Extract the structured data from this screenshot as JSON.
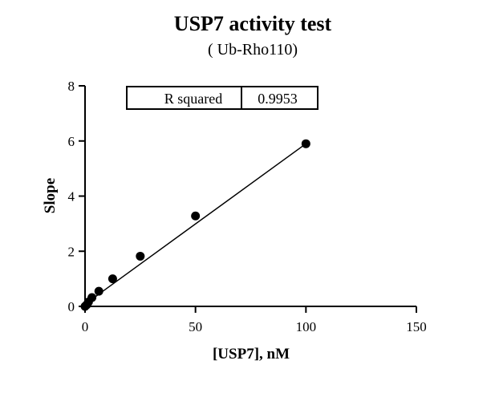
{
  "chart_data": {
    "type": "scatter",
    "title": "USP7 activity test",
    "subtitle": "( Ub-Rho110)",
    "xlabel": "[USP7], nM",
    "ylabel": "Slope",
    "xlim": [
      0,
      150
    ],
    "ylim": [
      0,
      8
    ],
    "x_ticks": [
      0,
      50,
      100,
      150
    ],
    "y_ticks": [
      0,
      2,
      4,
      6,
      8
    ],
    "grid": false,
    "series": [
      {
        "x": [
          0,
          0.78,
          1.56,
          3.13,
          6.25,
          12.5,
          25,
          50,
          100
        ],
        "y": [
          0.0,
          0.06,
          0.16,
          0.32,
          0.55,
          1.0,
          1.82,
          3.28,
          5.9
        ]
      }
    ],
    "fit_line": {
      "x": [
        0,
        100
      ],
      "y": [
        0.08,
        5.9
      ]
    },
    "stats_table": {
      "label": "R squared",
      "value": "0.9953"
    }
  }
}
